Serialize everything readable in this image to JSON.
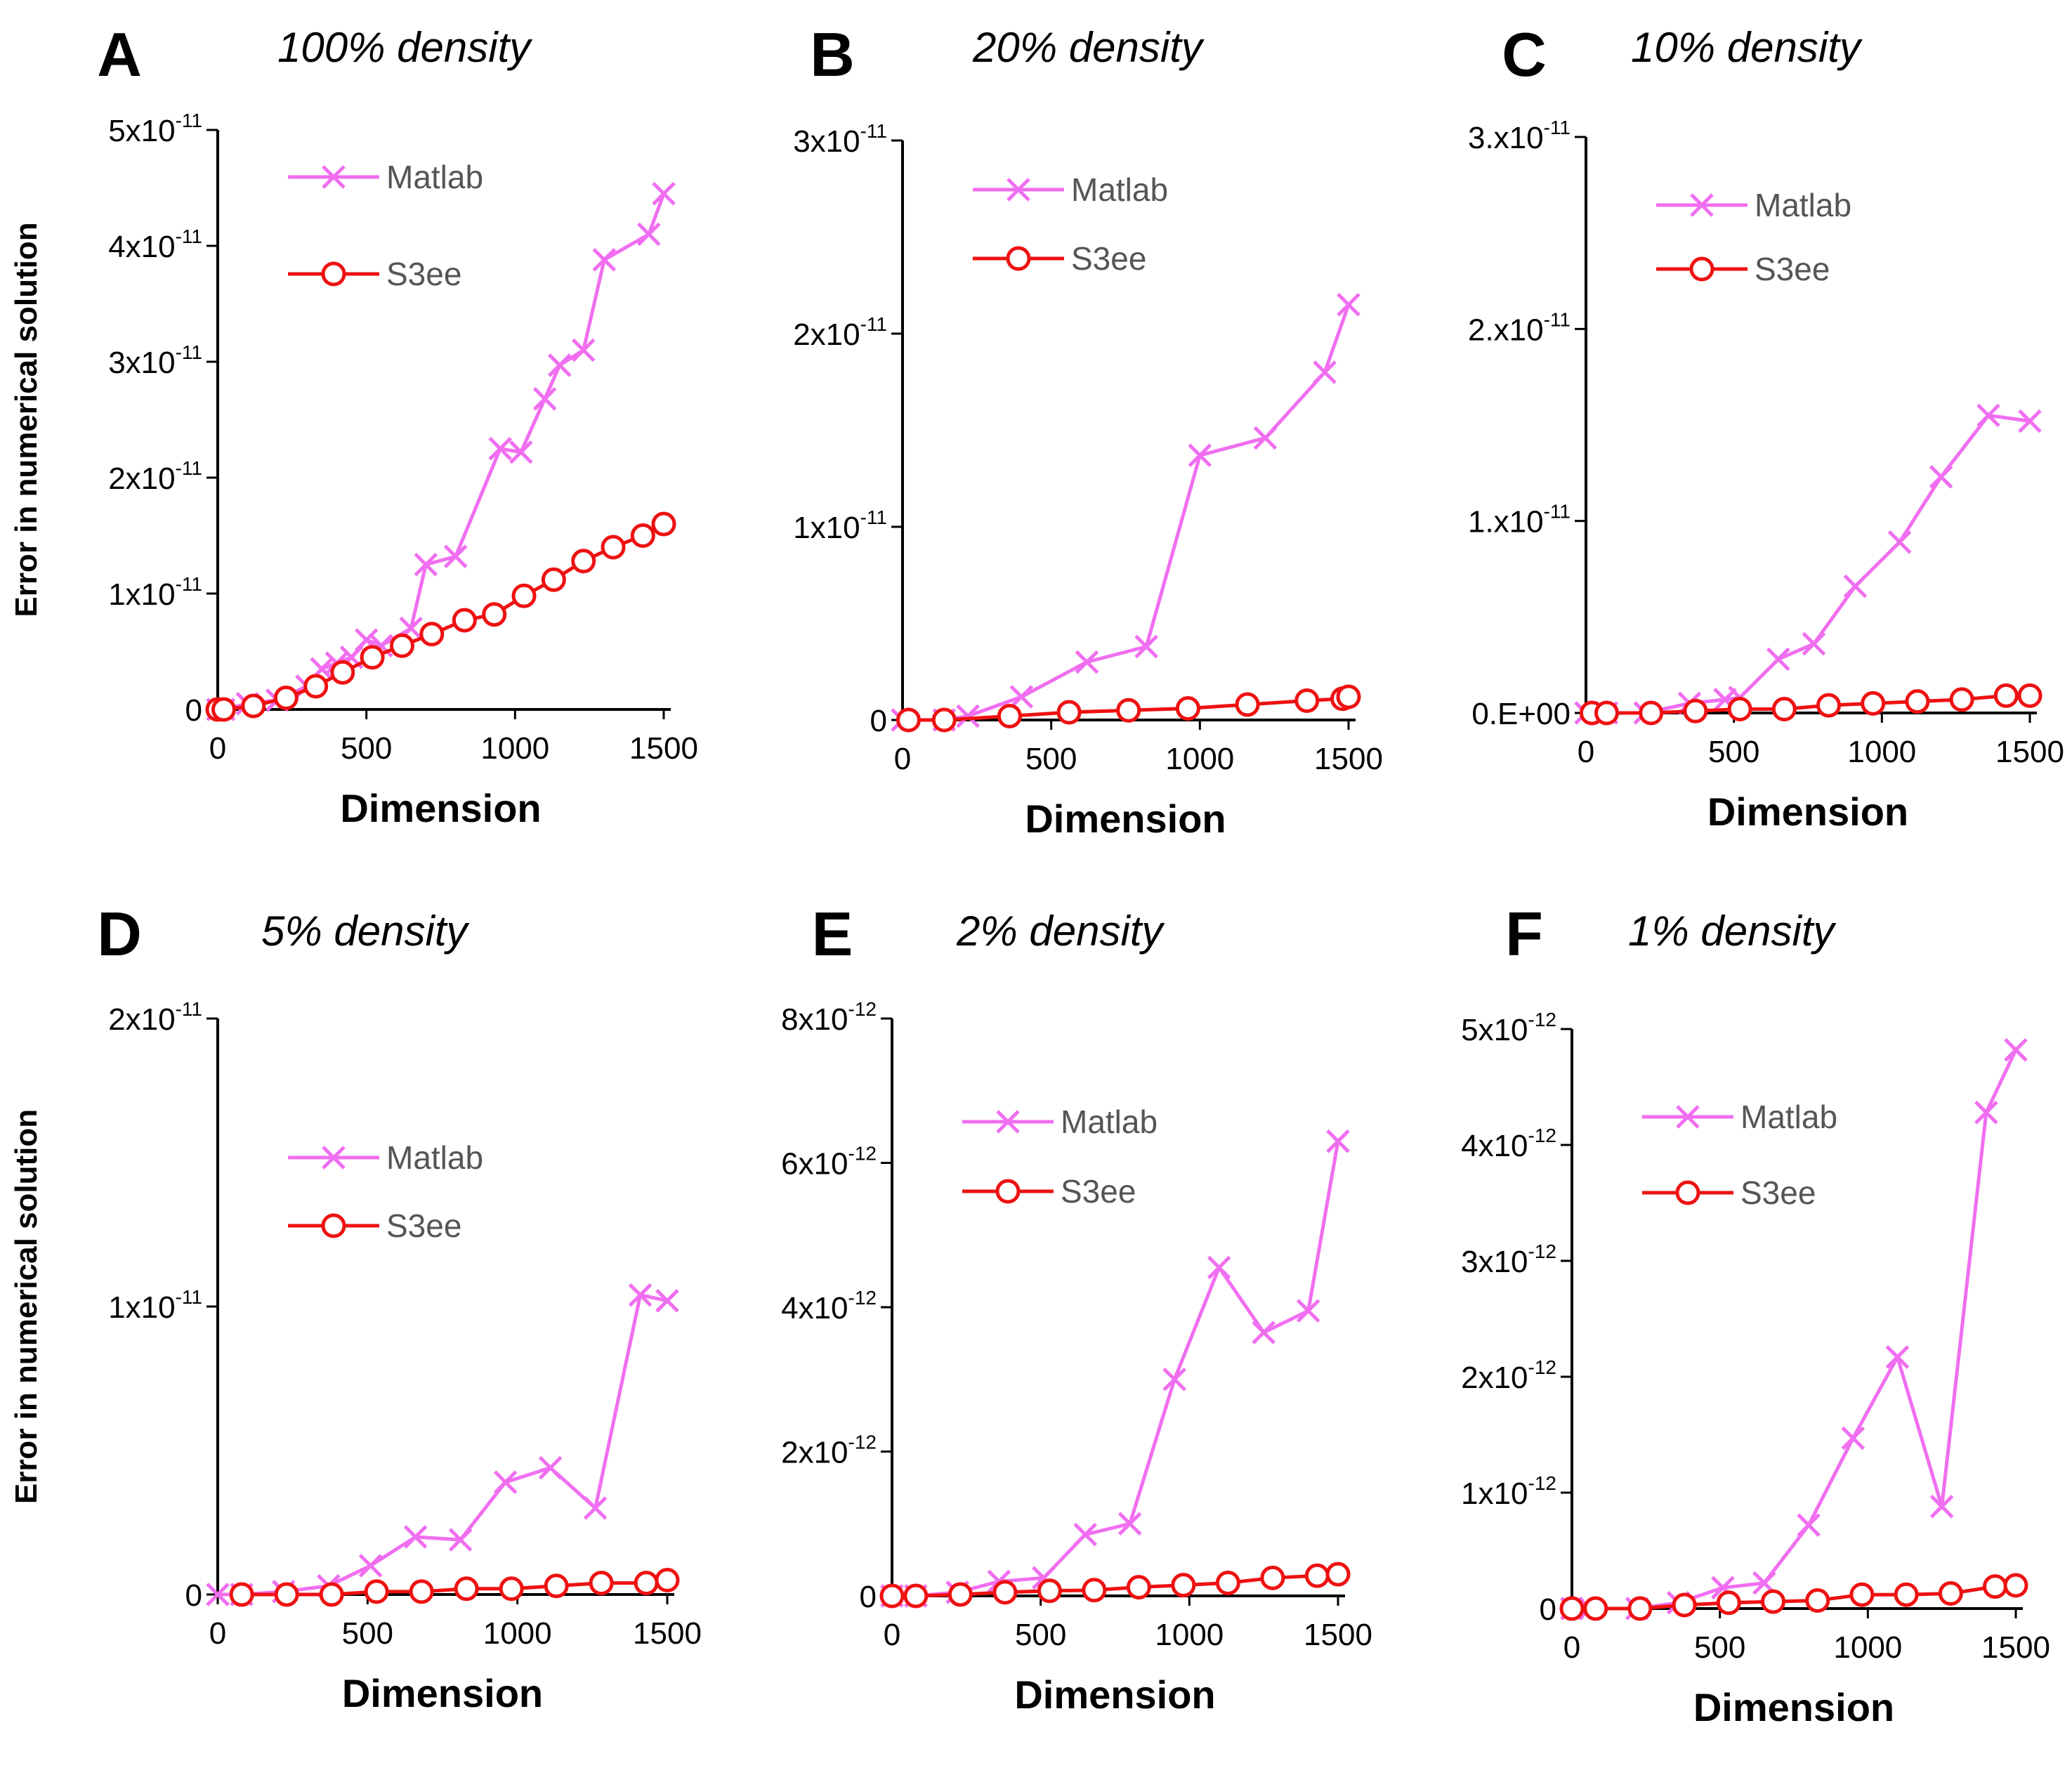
{
  "figure": {
    "y_axis_label": "Error in numerical solution",
    "x_axis_label": "Dimension",
    "series_colors": {
      "Matlab": "#f06ef0",
      "S3ee": "#ee1111"
    }
  },
  "chart_data": [
    {
      "type": "line",
      "panel": "A",
      "title": "100% density",
      "xlabel": "Dimension",
      "ylabel": "Error in numerical solution",
      "xlim": [
        0,
        1500
      ],
      "ylim": [
        0,
        5e-11
      ],
      "xticks": [
        0,
        500,
        1000,
        1500
      ],
      "yticks": [
        {
          "value": 0,
          "label": "0"
        },
        {
          "value": 1e-11,
          "label": "1x10",
          "exp": "-11"
        },
        {
          "value": 2e-11,
          "label": "2x10",
          "exp": "-11"
        },
        {
          "value": 3e-11,
          "label": "3x10",
          "exp": "-11"
        },
        {
          "value": 4e-11,
          "label": "4x10",
          "exp": "-11"
        },
        {
          "value": 5e-11,
          "label": "5x10",
          "exp": "-11"
        }
      ],
      "legend": [
        "Matlab",
        "S3ee"
      ],
      "series": [
        {
          "name": "Matlab",
          "marker": "x",
          "x": [
            0,
            20,
            100,
            200,
            300,
            350,
            400,
            450,
            500,
            550,
            650,
            700,
            800,
            950,
            1020,
            1100,
            1150,
            1230,
            1300,
            1450,
            1500
          ],
          "y": [
            0,
            0,
            5e-13,
            8e-13,
            2e-12,
            3.5e-12,
            4e-12,
            4.5e-12,
            6e-12,
            5.5e-12,
            7e-12,
            1.25e-11,
            1.32e-11,
            2.25e-11,
            2.22e-11,
            2.68e-11,
            2.97e-11,
            3.1e-11,
            3.88e-11,
            4.1e-11,
            4.45e-11
          ]
        },
        {
          "name": "S3ee",
          "marker": "o",
          "x": [
            0,
            20,
            120,
            230,
            330,
            420,
            520,
            620,
            720,
            830,
            930,
            1030,
            1130,
            1230,
            1330,
            1430,
            1500
          ],
          "y": [
            0,
            0,
            3e-13,
            1e-12,
            2e-12,
            3.2e-12,
            4.5e-12,
            5.5e-12,
            6.5e-12,
            7.7e-12,
            8.2e-12,
            9.8e-12,
            1.12e-11,
            1.28e-11,
            1.4e-11,
            1.5e-11,
            1.6e-11
          ]
        }
      ]
    },
    {
      "type": "line",
      "panel": "B",
      "title": "20% density",
      "xlabel": "Dimension",
      "ylabel": "",
      "xlim": [
        0,
        1500
      ],
      "ylim": [
        0,
        3e-11
      ],
      "xticks": [
        0,
        500,
        1000,
        1500
      ],
      "yticks": [
        {
          "value": 0,
          "label": "0"
        },
        {
          "value": 1e-11,
          "label": "1x10",
          "exp": "-11"
        },
        {
          "value": 2e-11,
          "label": "2x10",
          "exp": "-11"
        },
        {
          "value": 3e-11,
          "label": "3x10",
          "exp": "-11"
        }
      ],
      "legend": [
        "Matlab",
        "S3ee"
      ],
      "series": [
        {
          "name": "Matlab",
          "marker": "x",
          "x": [
            0,
            140,
            220,
            400,
            620,
            820,
            1000,
            1220,
            1420,
            1500
          ],
          "y": [
            0,
            0,
            2e-13,
            1.2e-12,
            3e-12,
            3.8e-12,
            1.37e-11,
            1.46e-11,
            1.8e-11,
            2.15e-11
          ]
        },
        {
          "name": "S3ee",
          "marker": "o",
          "x": [
            20,
            140,
            360,
            560,
            760,
            960,
            1160,
            1360,
            1480,
            1500
          ],
          "y": [
            0,
            0,
            2e-13,
            4e-13,
            5e-13,
            6e-13,
            8e-13,
            1e-12,
            1.1e-12,
            1.2e-12
          ]
        }
      ]
    },
    {
      "type": "line",
      "panel": "C",
      "title": "10% density",
      "xlabel": "Dimension",
      "ylabel": "",
      "xlim": [
        0,
        1500
      ],
      "ylim": [
        0,
        3e-11
      ],
      "xticks": [
        0,
        500,
        1000,
        1500
      ],
      "yticks": [
        {
          "value": 0,
          "label": "0.E+00"
        },
        {
          "value": 1e-11,
          "label": "1.x10",
          "exp": "-11"
        },
        {
          "value": 2e-11,
          "label": "2.x10",
          "exp": "-11"
        },
        {
          "value": 3e-11,
          "label": "3.x10",
          "exp": "-11"
        }
      ],
      "legend": [
        "Matlab",
        "S3ee"
      ],
      "series": [
        {
          "name": "Matlab",
          "marker": "x",
          "x": [
            0,
            70,
            200,
            350,
            470,
            520,
            650,
            770,
            910,
            1060,
            1200,
            1360,
            1500
          ],
          "y": [
            0,
            0,
            0,
            5e-13,
            7e-13,
            8e-13,
            2.8e-12,
            3.6e-12,
            6.6e-12,
            8.9e-12,
            1.23e-11,
            1.55e-11,
            1.52e-11
          ]
        },
        {
          "name": "S3ee",
          "marker": "o",
          "x": [
            20,
            70,
            220,
            370,
            520,
            670,
            820,
            970,
            1120,
            1270,
            1420,
            1500
          ],
          "y": [
            0,
            0,
            0,
            1e-13,
            2e-13,
            2e-13,
            4e-13,
            5e-13,
            6e-13,
            7e-13,
            9e-13,
            9e-13
          ]
        }
      ]
    },
    {
      "type": "line",
      "panel": "D",
      "title": "5% density",
      "xlabel": "Dimension",
      "ylabel": "Error in numerical solution",
      "xlim": [
        0,
        1500
      ],
      "ylim": [
        0,
        2e-11
      ],
      "xticks": [
        0,
        500,
        1000,
        1500
      ],
      "yticks": [
        {
          "value": 0,
          "label": "0"
        },
        {
          "value": 1e-11,
          "label": "1x10",
          "exp": "-11"
        },
        {
          "value": 2e-11,
          "label": "2x10",
          "exp": "-11"
        }
      ],
      "legend": [
        "Matlab",
        "S3ee"
      ],
      "series": [
        {
          "name": "Matlab",
          "marker": "x",
          "x": [
            0,
            80,
            220,
            370,
            510,
            660,
            810,
            960,
            1110,
            1260,
            1410,
            1500
          ],
          "y": [
            0,
            0,
            1e-13,
            3e-13,
            1e-12,
            2e-12,
            1.9e-12,
            3.9e-12,
            4.4e-12,
            3e-12,
            1.04e-11,
            1.02e-11
          ]
        },
        {
          "name": "S3ee",
          "marker": "o",
          "x": [
            80,
            230,
            380,
            530,
            680,
            830,
            980,
            1130,
            1280,
            1430,
            1500
          ],
          "y": [
            0,
            0,
            0,
            1e-13,
            1e-13,
            2e-13,
            2e-13,
            3e-13,
            4e-13,
            4e-13,
            5e-13
          ]
        }
      ]
    },
    {
      "type": "line",
      "panel": "E",
      "title": "2% density",
      "xlabel": "Dimension",
      "ylabel": "",
      "xlim": [
        0,
        1500
      ],
      "ylim": [
        0,
        8e-12
      ],
      "xticks": [
        0,
        500,
        1000,
        1500
      ],
      "yticks": [
        {
          "value": 0,
          "label": "0"
        },
        {
          "value": 2e-12,
          "label": "2x10",
          "exp": "-12"
        },
        {
          "value": 4e-12,
          "label": "4x10",
          "exp": "-12"
        },
        {
          "value": 6e-12,
          "label": "6x10",
          "exp": "-12"
        },
        {
          "value": 8e-12,
          "label": "8x10",
          "exp": "-12"
        }
      ],
      "legend": [
        "Matlab",
        "S3ee"
      ],
      "series": [
        {
          "name": "Matlab",
          "marker": "x",
          "x": [
            0,
            80,
            220,
            360,
            510,
            650,
            800,
            950,
            1100,
            1250,
            1400,
            1500
          ],
          "y": [
            0,
            0,
            5e-14,
            2e-13,
            2.5e-13,
            8.5e-13,
            1e-12,
            3e-12,
            4.55e-12,
            3.65e-12,
            3.95e-12,
            6.3e-12
          ]
        },
        {
          "name": "S3ee",
          "marker": "o",
          "x": [
            0,
            80,
            230,
            380,
            530,
            680,
            830,
            980,
            1130,
            1280,
            1430,
            1500
          ],
          "y": [
            0,
            0,
            2e-14,
            5e-14,
            7e-14,
            8e-14,
            1.2e-13,
            1.5e-13,
            1.8e-13,
            2.5e-13,
            2.8e-13,
            3e-13
          ]
        }
      ]
    },
    {
      "type": "line",
      "panel": "F",
      "title": "1% density",
      "xlabel": "Dimension",
      "ylabel": "",
      "xlim": [
        0,
        1500
      ],
      "ylim": [
        0,
        5e-12
      ],
      "xticks": [
        0,
        500,
        1000,
        1500
      ],
      "yticks": [
        {
          "value": 0,
          "label": "0"
        },
        {
          "value": 1e-12,
          "label": "1x10",
          "exp": "-12"
        },
        {
          "value": 2e-12,
          "label": "2x10",
          "exp": "-12"
        },
        {
          "value": 3e-12,
          "label": "3x10",
          "exp": "-12"
        },
        {
          "value": 4e-12,
          "label": "4x10",
          "exp": "-12"
        },
        {
          "value": 5e-12,
          "label": "5x10",
          "exp": "-12"
        }
      ],
      "legend": [
        "Matlab",
        "S3ee"
      ],
      "series": [
        {
          "name": "Matlab",
          "marker": "x",
          "x": [
            0,
            60,
            220,
            360,
            510,
            650,
            800,
            950,
            1100,
            1250,
            1400,
            1500
          ],
          "y": [
            0,
            0,
            0,
            5e-14,
            1.8e-13,
            2.2e-13,
            7.2e-13,
            1.47e-12,
            2.17e-12,
            8.8e-13,
            4.28e-12,
            4.82e-12
          ]
        },
        {
          "name": "S3ee",
          "marker": "o",
          "x": [
            0,
            80,
            230,
            380,
            530,
            680,
            830,
            980,
            1130,
            1280,
            1430,
            1500
          ],
          "y": [
            0,
            0,
            0,
            3e-14,
            5e-14,
            6e-14,
            7e-14,
            1.2e-13,
            1.2e-13,
            1.3e-13,
            1.9e-13,
            2e-13
          ]
        }
      ]
    }
  ]
}
